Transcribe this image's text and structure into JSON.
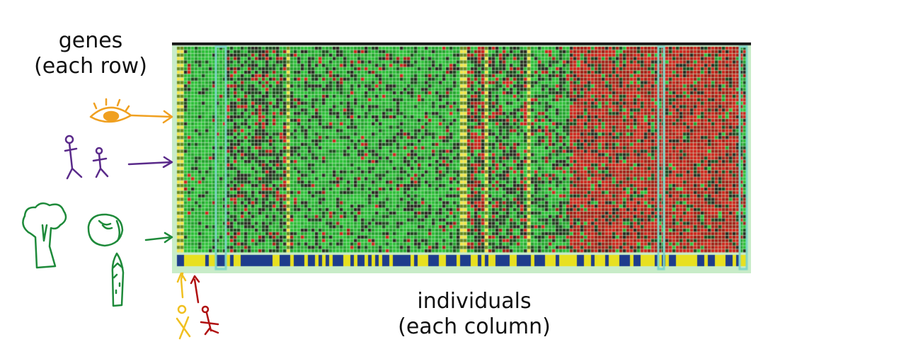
{
  "labels": {
    "rows_line1": "genes",
    "rows_line2": "(each row)",
    "cols_line1": "individuals",
    "cols_line2": "(each column)"
  },
  "heatmap": {
    "high_color": "#d0261e",
    "low_color": "#2fc13a",
    "mid_color": "#2a2a22",
    "marker_colors": [
      "#f0e020",
      "#1e3c8c"
    ],
    "highlight_color": "#7fd6c8"
  },
  "annotations": {
    "eye_color": "#f0a020",
    "people_color": "#5a2a8a",
    "vegetables_color": "#1e8a3a",
    "individual_a_color": "#f0c020",
    "individual_b_color": "#b01010",
    "icons": [
      "eye-icon",
      "people-icon",
      "broccoli-icon",
      "cabbage-icon",
      "asparagus-icon",
      "person-icon"
    ]
  }
}
